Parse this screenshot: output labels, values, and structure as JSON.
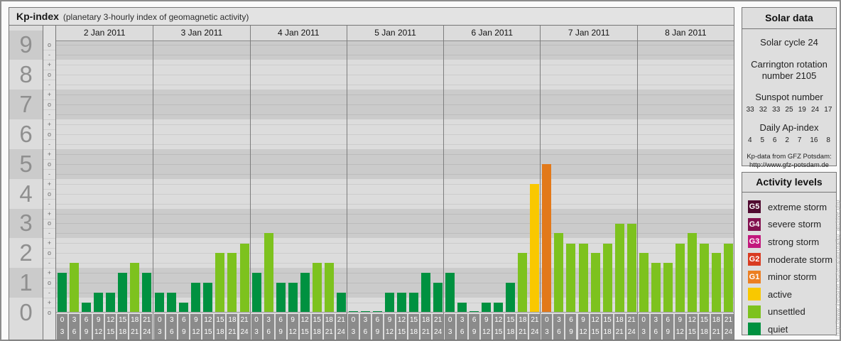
{
  "header": {
    "main": "Kp-index",
    "subtitle": "(planetary 3-hourly index of geomagnetic activity)"
  },
  "watermark": "http://www.theusner.eu/terra/aurora/kp_archive.php",
  "colors": {
    "quiet": "#009140",
    "unsettled": "#7dc21e",
    "active": "#f9c800",
    "minor_storm": "#e2791a",
    "band_dark": "#cbcbcb",
    "band_light": "#dcdcdc",
    "tick_box": "#8b8b8b"
  },
  "chart_data": {
    "type": "bar",
    "title": "Kp-index",
    "subtitle": "planetary 3-hourly index of geomagnetic activity",
    "ylabel": "Kp",
    "ylim": [
      0,
      9
    ],
    "y_major_ticks": [
      "0",
      "1",
      "2",
      "3",
      "4",
      "5",
      "6",
      "7",
      "8",
      "9"
    ],
    "y_sub_marks_within_unit_top_to_bottom": [
      "+",
      "o",
      "-"
    ],
    "grid": "horizontal lines every 1/3 Kp, alternating shaded bands per Kp unit",
    "legend_position": "right",
    "intervals": [
      [
        "0",
        "3"
      ],
      [
        "3",
        "6"
      ],
      [
        "6",
        "9"
      ],
      [
        "9",
        "12"
      ],
      [
        "12",
        "15"
      ],
      [
        "15",
        "18"
      ],
      [
        "18",
        "21"
      ],
      [
        "21",
        "24"
      ]
    ],
    "days": [
      {
        "date": "2 Jan 2011",
        "kp": [
          1.33,
          1.67,
          0.33,
          0.67,
          0.67,
          1.33,
          1.67,
          1.33
        ],
        "kp_notation": [
          "1+",
          "2-",
          "0+",
          "1-",
          "1-",
          "1+",
          "2-",
          "1+"
        ],
        "levels": [
          "quiet",
          "unsettled",
          "quiet",
          "quiet",
          "quiet",
          "quiet",
          "unsettled",
          "quiet"
        ]
      },
      {
        "date": "3 Jan 2011",
        "kp": [
          0.67,
          0.67,
          0.33,
          1.0,
          1.0,
          2.0,
          2.0,
          2.33
        ],
        "kp_notation": [
          "1-",
          "1-",
          "0+",
          "1o",
          "1o",
          "2o",
          "2o",
          "2+"
        ],
        "levels": [
          "quiet",
          "quiet",
          "quiet",
          "quiet",
          "quiet",
          "unsettled",
          "unsettled",
          "unsettled"
        ]
      },
      {
        "date": "4 Jan 2011",
        "kp": [
          1.33,
          2.67,
          1.0,
          1.0,
          1.33,
          1.67,
          1.67,
          0.67
        ],
        "kp_notation": [
          "1+",
          "3-",
          "1o",
          "1o",
          "1+",
          "2-",
          "2-",
          "1-"
        ],
        "levels": [
          "quiet",
          "unsettled",
          "quiet",
          "quiet",
          "quiet",
          "unsettled",
          "unsettled",
          "quiet"
        ]
      },
      {
        "date": "5 Jan 2011",
        "kp": [
          0.0,
          0.0,
          0.0,
          0.67,
          0.67,
          0.67,
          1.33,
          1.0
        ],
        "kp_notation": [
          "0o",
          "0o",
          "0o",
          "1-",
          "1-",
          "1-",
          "1+",
          "1o"
        ],
        "levels": [
          "quiet",
          "quiet",
          "quiet",
          "quiet",
          "quiet",
          "quiet",
          "quiet",
          "quiet"
        ]
      },
      {
        "date": "6 Jan 2011",
        "kp": [
          1.33,
          0.33,
          0.0,
          0.33,
          0.33,
          1.0,
          2.0,
          4.33
        ],
        "kp_notation": [
          "1+",
          "0+",
          "0o",
          "0+",
          "0+",
          "1o",
          "2o",
          "4+"
        ],
        "levels": [
          "quiet",
          "quiet",
          "quiet",
          "quiet",
          "quiet",
          "quiet",
          "unsettled",
          "active"
        ]
      },
      {
        "date": "7 Jan 2011",
        "kp": [
          5.0,
          2.67,
          2.33,
          2.33,
          2.0,
          2.33,
          3.0,
          3.0
        ],
        "kp_notation": [
          "5o",
          "3-",
          "2+",
          "2+",
          "2o",
          "2+",
          "3o",
          "3o"
        ],
        "levels": [
          "minor_storm",
          "unsettled",
          "unsettled",
          "unsettled",
          "unsettled",
          "unsettled",
          "unsettled",
          "unsettled"
        ]
      },
      {
        "date": "8 Jan 2011",
        "kp": [
          2.0,
          1.67,
          1.67,
          2.33,
          2.67,
          2.33,
          2.0,
          2.33
        ],
        "kp_notation": [
          "2o",
          "2-",
          "2-",
          "2+",
          "3-",
          "2+",
          "2o",
          "2+"
        ],
        "levels": [
          "unsettled",
          "unsettled",
          "unsettled",
          "unsettled",
          "unsettled",
          "unsettled",
          "unsettled",
          "unsettled"
        ]
      }
    ]
  },
  "solar": {
    "title": "Solar data",
    "cycle": "Solar cycle 24",
    "carrington_line1": "Carrington rotation",
    "carrington_line2": "number 2105",
    "sunspot_title": "Sunspot number",
    "sunspot_values": [
      "33",
      "32",
      "33",
      "25",
      "19",
      "24",
      "17"
    ],
    "ap_title": "Daily Ap-index",
    "ap_values": [
      "4",
      "5",
      "6",
      "2",
      "7",
      "16",
      "8"
    ],
    "source_line1": "Kp-data from GFZ Potsdam:",
    "source_line2": "http://www.gfz-potsdam.de"
  },
  "activity": {
    "title": "Activity levels",
    "items": [
      {
        "badge": "G5",
        "label": "extreme storm",
        "color": "#500a30"
      },
      {
        "badge": "G4",
        "label": "severe storm",
        "color": "#82104e"
      },
      {
        "badge": "G3",
        "label": "strong storm",
        "color": "#c2187c"
      },
      {
        "badge": "G2",
        "label": "moderate storm",
        "color": "#d93b21"
      },
      {
        "badge": "G1",
        "label": "minor storm",
        "color": "#ec7f22"
      },
      {
        "badge": "",
        "label": "active",
        "color": "#f9c800"
      },
      {
        "badge": "",
        "label": "unsettled",
        "color": "#7dc21e"
      },
      {
        "badge": "",
        "label": "quiet",
        "color": "#009140"
      }
    ]
  }
}
